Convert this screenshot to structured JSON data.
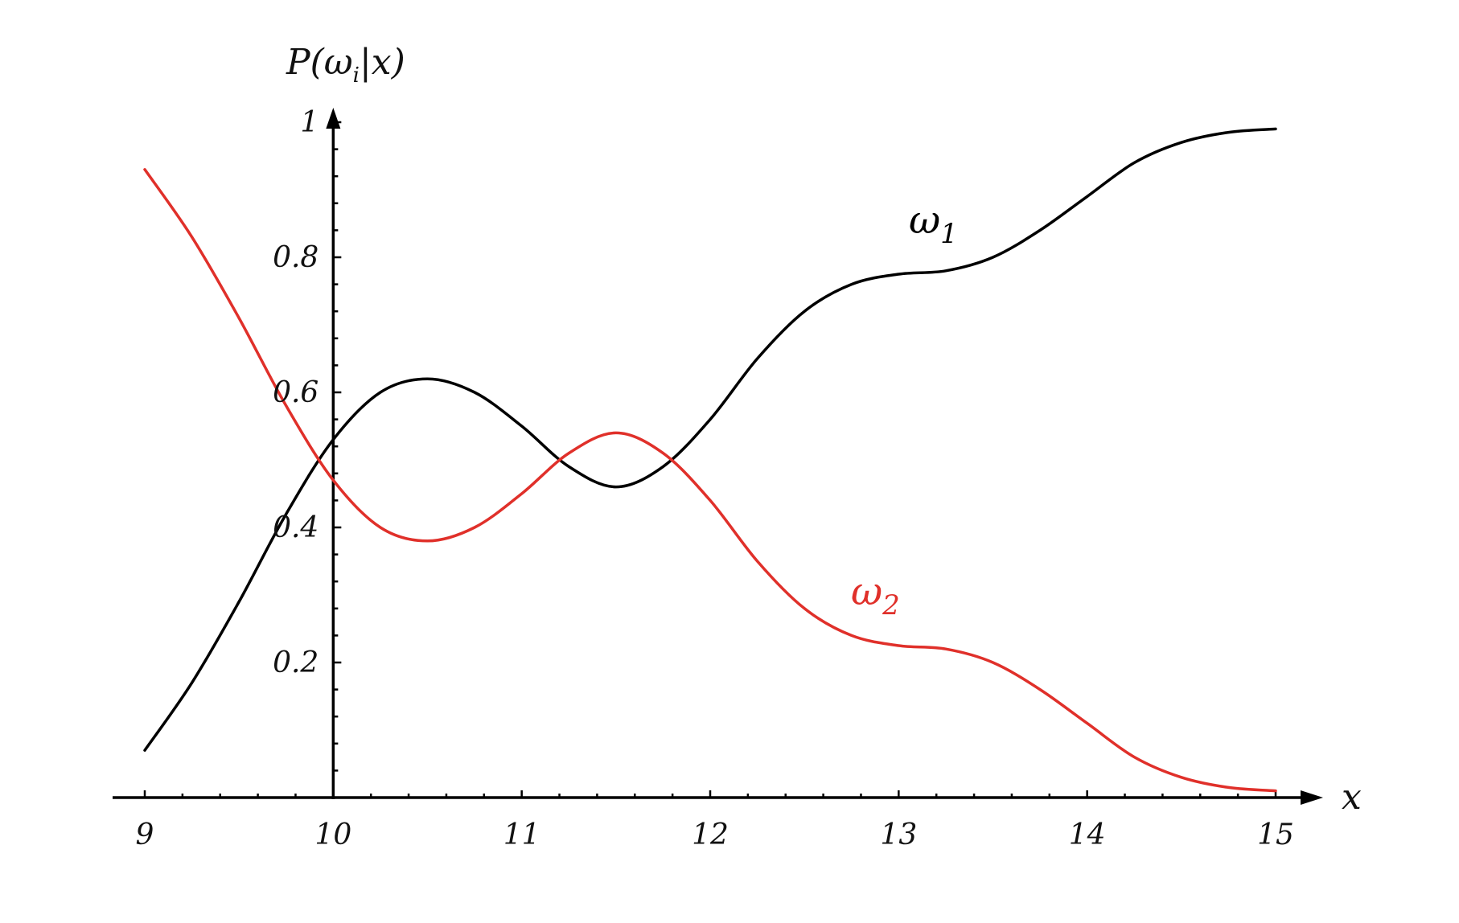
{
  "chart_data": {
    "type": "line",
    "title": "",
    "xlabel": "x",
    "ylabel": "P(ωi|x)",
    "xlim": [
      9,
      15
    ],
    "ylim": [
      0,
      1
    ],
    "x_ticks": [
      "9",
      "10",
      "11",
      "12",
      "13",
      "14",
      "15"
    ],
    "y_ticks": [
      "0.2",
      "0.4",
      "0.6",
      "0.8",
      "1"
    ],
    "grid": false,
    "series": [
      {
        "name": "ω1",
        "color": "#000000",
        "x": [
          9.0,
          9.25,
          9.5,
          9.75,
          10.0,
          10.25,
          10.5,
          10.75,
          11.0,
          11.25,
          11.5,
          11.75,
          12.0,
          12.25,
          12.5,
          12.75,
          13.0,
          13.25,
          13.5,
          13.75,
          14.0,
          14.25,
          14.5,
          14.75,
          15.0
        ],
        "y": [
          0.07,
          0.17,
          0.29,
          0.42,
          0.53,
          0.6,
          0.62,
          0.6,
          0.55,
          0.49,
          0.46,
          0.49,
          0.56,
          0.65,
          0.72,
          0.76,
          0.775,
          0.78,
          0.8,
          0.84,
          0.89,
          0.94,
          0.97,
          0.985,
          0.99
        ]
      },
      {
        "name": "ω2",
        "color": "#e0302a",
        "x": [
          9.0,
          9.25,
          9.5,
          9.75,
          10.0,
          10.25,
          10.5,
          10.75,
          11.0,
          11.25,
          11.5,
          11.75,
          12.0,
          12.25,
          12.5,
          12.75,
          13.0,
          13.25,
          13.5,
          13.75,
          14.0,
          14.25,
          14.5,
          14.75,
          15.0
        ],
        "y": [
          0.93,
          0.83,
          0.71,
          0.58,
          0.47,
          0.4,
          0.38,
          0.4,
          0.45,
          0.51,
          0.54,
          0.51,
          0.44,
          0.35,
          0.28,
          0.24,
          0.225,
          0.22,
          0.2,
          0.16,
          0.11,
          0.06,
          0.03,
          0.015,
          0.01
        ]
      }
    ],
    "legend": "none"
  }
}
